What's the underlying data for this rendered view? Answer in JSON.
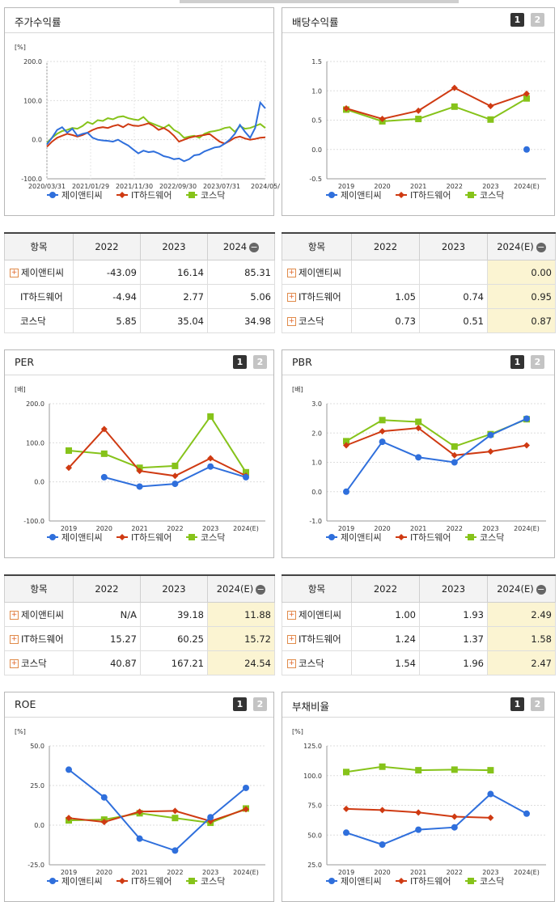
{
  "legend": [
    {
      "name": "제이앤티씨",
      "color": "#2f6fdc",
      "marker": "circle"
    },
    {
      "name": "IT하드웨어",
      "color": "#cf3a12",
      "marker": "diamond"
    },
    {
      "name": "코스닥",
      "color": "#86c31a",
      "marker": "square"
    }
  ],
  "buttons": {
    "b1": "1",
    "b2": "2"
  },
  "panels": {
    "stock": {
      "title": "주가수익률",
      "unit": "[%]"
    },
    "dividend": {
      "title": "배당수익률"
    },
    "per": {
      "title": "PER",
      "unit": "[배]"
    },
    "pbr": {
      "title": "PBR",
      "unit": "[배]"
    },
    "roe": {
      "title": "ROE",
      "unit": "[%]"
    },
    "debt": {
      "title": "부채비율",
      "unit": "[%]"
    }
  },
  "tables": {
    "stock": {
      "header": [
        "항목",
        "2022",
        "2023",
        "2024"
      ],
      "rows": [
        {
          "name": "제이앤티씨",
          "values": [
            "-43.09",
            "16.14",
            "85.31"
          ]
        },
        {
          "name": "IT하드웨어",
          "values": [
            "-4.94",
            "2.77",
            "5.06"
          ]
        },
        {
          "name": "코스닥",
          "values": [
            "5.85",
            "35.04",
            "34.98"
          ]
        }
      ]
    },
    "dividend": {
      "header": [
        "항목",
        "2022",
        "2023",
        "2024(E)"
      ],
      "rows": [
        {
          "name": "제이앤티씨",
          "values": [
            "",
            "",
            "0.00"
          ]
        },
        {
          "name": "IT하드웨어",
          "values": [
            "1.05",
            "0.74",
            "0.95"
          ]
        },
        {
          "name": "코스닥",
          "values": [
            "0.73",
            "0.51",
            "0.87"
          ]
        }
      ]
    },
    "per": {
      "header": [
        "항목",
        "2022",
        "2023",
        "2024(E)"
      ],
      "rows": [
        {
          "name": "제이앤티씨",
          "values": [
            "N/A",
            "39.18",
            "11.88"
          ]
        },
        {
          "name": "IT하드웨어",
          "values": [
            "15.27",
            "60.25",
            "15.72"
          ]
        },
        {
          "name": "코스닥",
          "values": [
            "40.87",
            "167.21",
            "24.54"
          ]
        }
      ]
    },
    "pbr": {
      "header": [
        "항목",
        "2022",
        "2023",
        "2024(E)"
      ],
      "rows": [
        {
          "name": "제이앤티씨",
          "values": [
            "1.00",
            "1.93",
            "2.49"
          ]
        },
        {
          "name": "IT하드웨어",
          "values": [
            "1.24",
            "1.37",
            "1.58"
          ]
        },
        {
          "name": "코스닥",
          "values": [
            "1.54",
            "1.96",
            "2.47"
          ]
        }
      ]
    }
  },
  "chart_data": [
    {
      "id": "stock",
      "type": "line",
      "title": "주가수익률",
      "ylabel": "[%]",
      "x_ticks": [
        "2020/03/31",
        "2021/01/29",
        "2021/11/30",
        "2022/09/30",
        "2023/07/31",
        "2024/05/"
      ],
      "y_ticks": [
        "-100.0",
        "0.0",
        "100.0",
        "200.0"
      ],
      "ylim": [
        -100,
        200
      ],
      "series": [
        {
          "name": "제이앤티씨",
          "values": [
            -12,
            5,
            25,
            32,
            18,
            28,
            10,
            15,
            18,
            5,
            0,
            -2,
            -3,
            -5,
            0,
            -8,
            -15,
            -25,
            -35,
            -28,
            -32,
            -30,
            -35,
            -42,
            -45,
            -50,
            -48,
            -55,
            -50,
            -40,
            -38,
            -30,
            -25,
            -20,
            -18,
            -10,
            0,
            15,
            38,
            20,
            5,
            30,
            95,
            80
          ]
        },
        {
          "name": "IT하드웨어",
          "values": [
            -18,
            -5,
            5,
            10,
            15,
            12,
            8,
            12,
            18,
            25,
            30,
            32,
            30,
            35,
            38,
            32,
            40,
            36,
            35,
            38,
            42,
            35,
            25,
            30,
            22,
            10,
            -5,
            0,
            5,
            8,
            10,
            12,
            15,
            5,
            -5,
            -10,
            -3,
            5,
            8,
            3,
            0,
            2,
            5,
            6
          ]
        },
        {
          "name": "코스닥",
          "values": [
            -8,
            5,
            15,
            22,
            25,
            30,
            28,
            35,
            45,
            40,
            50,
            48,
            55,
            52,
            58,
            60,
            55,
            52,
            50,
            58,
            45,
            40,
            35,
            30,
            38,
            25,
            18,
            5,
            8,
            10,
            5,
            15,
            20,
            22,
            25,
            30,
            32,
            20,
            35,
            28,
            30,
            35,
            40,
            30
          ]
        }
      ]
    },
    {
      "id": "dividend",
      "type": "line",
      "title": "배당수익률",
      "categories": [
        "2019",
        "2020",
        "2021",
        "2022",
        "2023",
        "2024(E)"
      ],
      "y_ticks": [
        "-0.5",
        "0.0",
        "0.5",
        "1.0",
        "1.5"
      ],
      "ylim": [
        -0.5,
        1.5
      ],
      "series": [
        {
          "name": "제이앤티씨",
          "values": [
            null,
            null,
            null,
            null,
            null,
            0.0
          ]
        },
        {
          "name": "IT하드웨어",
          "values": [
            0.7,
            0.52,
            0.66,
            1.05,
            0.74,
            0.95
          ]
        },
        {
          "name": "코스닥",
          "values": [
            0.68,
            0.48,
            0.52,
            0.73,
            0.51,
            0.87
          ]
        }
      ]
    },
    {
      "id": "per",
      "type": "line",
      "title": "PER",
      "ylabel": "[배]",
      "categories": [
        "2019",
        "2020",
        "2021",
        "2022",
        "2023",
        "2024(E)"
      ],
      "y_ticks": [
        "-100.0",
        "0.0",
        "100.0",
        "200.0"
      ],
      "ylim": [
        -100,
        200
      ],
      "series": [
        {
          "name": "제이앤티씨",
          "values": [
            null,
            12,
            -12,
            -5,
            39.18,
            11.88
          ]
        },
        {
          "name": "IT하드웨어",
          "values": [
            36,
            135,
            28,
            15.27,
            60.25,
            15.72
          ]
        },
        {
          "name": "코스닥",
          "values": [
            80,
            72,
            36,
            40.87,
            167.21,
            24.54
          ]
        }
      ]
    },
    {
      "id": "pbr",
      "type": "line",
      "title": "PBR",
      "ylabel": "[배]",
      "categories": [
        "2019",
        "2020",
        "2021",
        "2022",
        "2023",
        "2024(E)"
      ],
      "y_ticks": [
        "-1.0",
        "0.0",
        "1.0",
        "2.0",
        "3.0"
      ],
      "ylim": [
        -1,
        3
      ],
      "series": [
        {
          "name": "제이앤티씨",
          "values": [
            0.0,
            1.7,
            1.17,
            1.0,
            1.93,
            2.49
          ]
        },
        {
          "name": "IT하드웨어",
          "values": [
            1.58,
            2.06,
            2.17,
            1.24,
            1.37,
            1.58
          ]
        },
        {
          "name": "코스닥",
          "values": [
            1.72,
            2.44,
            2.38,
            1.54,
            1.96,
            2.47
          ]
        }
      ]
    },
    {
      "id": "roe",
      "type": "line",
      "title": "ROE",
      "ylabel": "[%]",
      "categories": [
        "2019",
        "2020",
        "2021",
        "2022",
        "2023",
        "2024(E)"
      ],
      "y_ticks": [
        "-25.0",
        "0.0",
        "25.0",
        "50.0"
      ],
      "ylim": [
        -25,
        50
      ],
      "series": [
        {
          "name": "제이앤티씨",
          "values": [
            35,
            17.5,
            -8.5,
            -16,
            5,
            23.5
          ]
        },
        {
          "name": "IT하드웨어",
          "values": [
            4.5,
            2,
            8.5,
            9,
            2.5,
            10
          ]
        },
        {
          "name": "코스닥",
          "values": [
            3,
            3.5,
            7.5,
            4.5,
            1.5,
            10.5
          ]
        }
      ]
    },
    {
      "id": "debt",
      "type": "line",
      "title": "부채비율",
      "ylabel": "[%]",
      "categories": [
        "2019",
        "2020",
        "2021",
        "2022",
        "2023",
        "2024(E)"
      ],
      "y_ticks": [
        "25.0",
        "50.0",
        "75.0",
        "100.0",
        "125.0"
      ],
      "ylim": [
        25,
        125
      ],
      "series": [
        {
          "name": "제이앤티씨",
          "values": [
            52,
            42,
            54.5,
            56.5,
            84.5,
            68
          ]
        },
        {
          "name": "IT하드웨어",
          "values": [
            72,
            71,
            69,
            65.5,
            64.5,
            null
          ]
        },
        {
          "name": "코스닥",
          "values": [
            103,
            107.5,
            104.5,
            105,
            104.5,
            null
          ]
        }
      ]
    }
  ]
}
